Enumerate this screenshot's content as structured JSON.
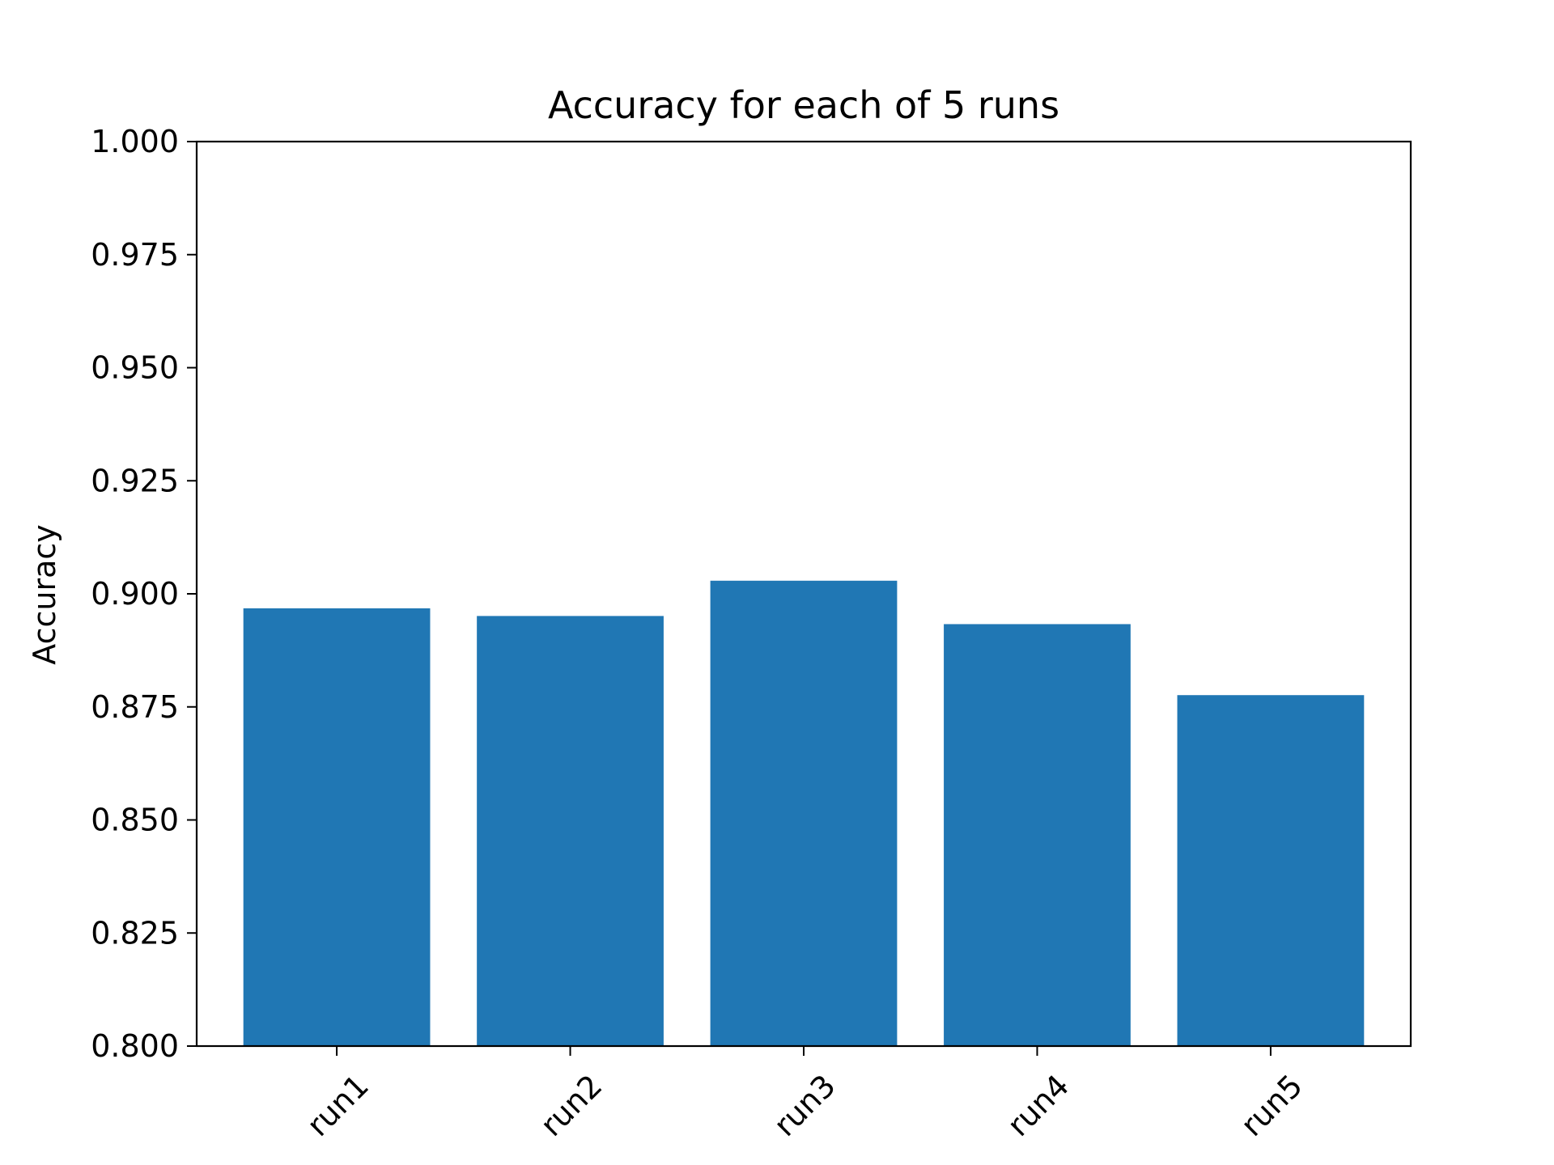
{
  "chart_data": {
    "type": "bar",
    "title": "Accuracy for each of 5 runs",
    "xlabel": "",
    "ylabel": "Accuracy",
    "categories": [
      "run1",
      "run2",
      "run3",
      "run4",
      "run5"
    ],
    "values": [
      0.8968,
      0.8951,
      0.9029,
      0.8933,
      0.8776
    ],
    "ylim": [
      0.8,
      1.0
    ],
    "yticks": [
      "0.800",
      "0.825",
      "0.850",
      "0.875",
      "0.900",
      "0.925",
      "0.950",
      "0.975",
      "1.000"
    ],
    "bar_color": "#2077b4",
    "grid": false,
    "legend": "none"
  }
}
